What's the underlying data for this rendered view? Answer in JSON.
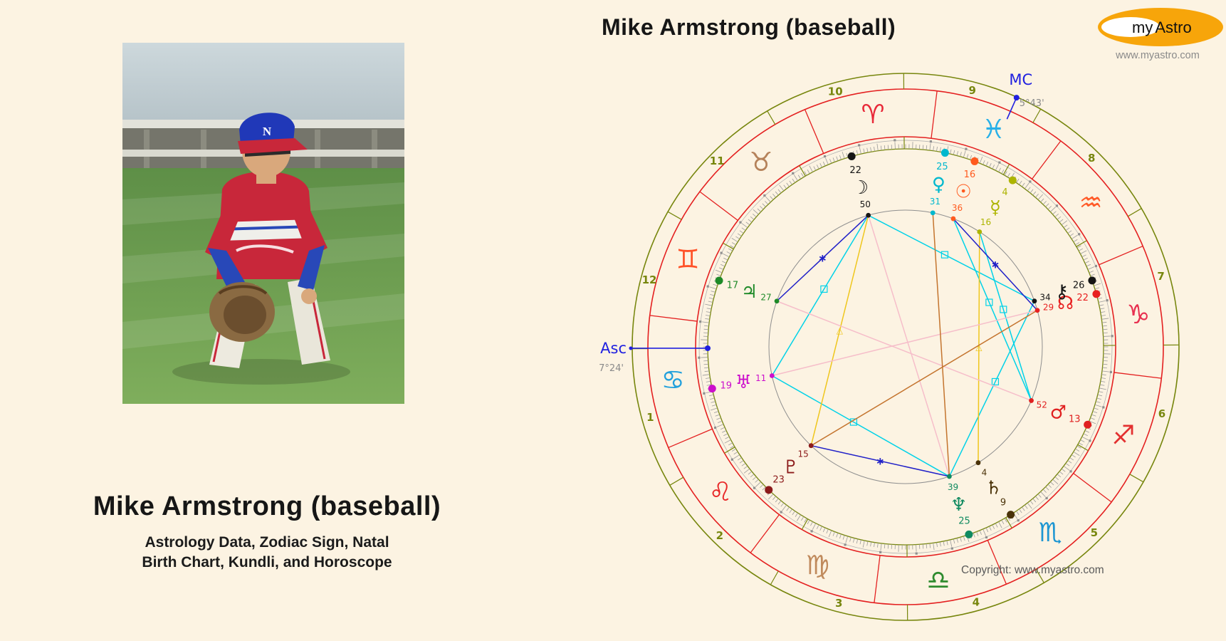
{
  "left_panel": {
    "title": "Mike Armstrong (baseball)",
    "subtitle_lines": [
      "Astrology Data, Zodiac Sign, Natal",
      "Birth Chart, Kundli, and Horoscope"
    ]
  },
  "chart_header": {
    "title": "Mike Armstrong (baseball)"
  },
  "logo": {
    "text_my": "my",
    "text_astro": "Astro",
    "website": "www.myastro.com",
    "ellipse_color": "#F7A50A"
  },
  "footer": {
    "copyright": "Copyright: www.myastro.com"
  },
  "chart": {
    "colors": {
      "ring_olive": "#77860D",
      "ring_red": "#E42020",
      "tick_gray": "#9A9A9A",
      "aspect_circle": "#8F8F8F",
      "angle_blue": "#2020E0",
      "degree_gray": "#8A8A8A",
      "square": "#00D2E8",
      "trine": "#EFC61C",
      "sextile": "#2020C8",
      "opposition": "#F6BECA",
      "quincunx": "#C4742E"
    },
    "angles": {
      "asc": {
        "label": "Asc",
        "degree": "7°24'",
        "theta": 180.4
      },
      "mc": {
        "label": "MC",
        "degree": "5°43'",
        "theta": 66
      }
    },
    "houses": [
      "1",
      "2",
      "3",
      "4",
      "5",
      "6",
      "7",
      "8",
      "9",
      "10",
      "11",
      "12"
    ],
    "signs": [
      {
        "name": "aries",
        "glyph": "♈",
        "color": "#E82838"
      },
      {
        "name": "taurus",
        "glyph": "♉",
        "color": "#B5825A"
      },
      {
        "name": "gemini",
        "glyph": "♊",
        "color": "#FF5228"
      },
      {
        "name": "cancer",
        "glyph": "♋",
        "color": "#22A0DC"
      },
      {
        "name": "leo",
        "glyph": "♌",
        "color": "#E82828"
      },
      {
        "name": "virgo",
        "glyph": "♍",
        "color": "#C08A5C"
      },
      {
        "name": "libra",
        "glyph": "♎",
        "color": "#2E8B2E"
      },
      {
        "name": "scorpio",
        "glyph": "♏",
        "color": "#1E96D2"
      },
      {
        "name": "sagittarius",
        "glyph": "♐",
        "color": "#E33030"
      },
      {
        "name": "capricorn",
        "glyph": "♑",
        "color": "#E83050"
      },
      {
        "name": "aquarius",
        "glyph": "♒",
        "color": "#FF5A28"
      },
      {
        "name": "pisces",
        "glyph": "♓",
        "color": "#28B0E8"
      }
    ],
    "planets": [
      {
        "name": "sun",
        "glyph": "☉",
        "color": "#FF5A1E",
        "lon": 346.6,
        "deg": "16",
        "min": "36"
      },
      {
        "name": "moon",
        "glyph": "☽",
        "color": "#151515",
        "lon": 22.83,
        "deg": "22",
        "min": "50"
      },
      {
        "name": "mercury",
        "glyph": "☿",
        "color": "#ADB400",
        "lon": 334.27,
        "deg": "4",
        "min": "16"
      },
      {
        "name": "venus",
        "glyph": "♀",
        "color": "#00B8CE",
        "lon": 355.52,
        "deg": "25",
        "min": "31"
      },
      {
        "name": "mars",
        "glyph": "♂",
        "color": "#E02020",
        "lon": 253.87,
        "deg": "13",
        "min": "52"
      },
      {
        "name": "jupiter",
        "glyph": "♃",
        "color": "#1E8A28",
        "lon": 77.45,
        "deg": "17",
        "min": "27"
      },
      {
        "name": "saturn",
        "glyph": "♄",
        "color": "#4A3208",
        "lon": 219.07,
        "deg": "9",
        "min": "4"
      },
      {
        "name": "uranus",
        "glyph": "♅",
        "color": "#CC10CC",
        "lon": 109.18,
        "deg": "19",
        "min": "11"
      },
      {
        "name": "neptune",
        "glyph": "♆",
        "color": "#108A60",
        "lon": 205.65,
        "deg": "25",
        "min": "39"
      },
      {
        "name": "pluto",
        "glyph": "♇",
        "color": "#8C1A1A",
        "lon": 143.25,
        "deg": "23",
        "min": "15"
      },
      {
        "name": "node",
        "glyph": "☊",
        "color": "#E82020",
        "lon": 292.48,
        "deg": "22",
        "min": "29"
      },
      {
        "name": "chiron",
        "glyph": "⚷",
        "color": "#151515",
        "lon": 296.57,
        "deg": "26",
        "min": "34"
      }
    ],
    "aspects": [
      {
        "a": "sun",
        "b": "mars",
        "type": "square"
      },
      {
        "a": "mercury",
        "b": "mars",
        "type": "square"
      },
      {
        "a": "moon",
        "b": "uranus",
        "type": "square"
      },
      {
        "a": "moon",
        "b": "chiron",
        "type": "square"
      },
      {
        "a": "uranus",
        "b": "neptune",
        "type": "square"
      },
      {
        "a": "chiron",
        "b": "neptune",
        "type": "square"
      },
      {
        "a": "moon",
        "b": "pluto",
        "type": "trine"
      },
      {
        "a": "mercury",
        "b": "saturn",
        "type": "trine"
      },
      {
        "a": "sun",
        "b": "node",
        "type": "sextile"
      },
      {
        "a": "neptune",
        "b": "pluto",
        "type": "sextile"
      },
      {
        "a": "moon",
        "b": "jupiter",
        "type": "sextile"
      },
      {
        "a": "moon",
        "b": "neptune",
        "type": "opposition"
      },
      {
        "a": "jupiter",
        "b": "mars",
        "type": "opposition"
      },
      {
        "a": "uranus",
        "b": "node",
        "type": "opposition"
      },
      {
        "a": "venus",
        "b": "neptune",
        "type": "quincunx"
      },
      {
        "a": "pluto",
        "b": "node",
        "type": "quincunx"
      }
    ]
  }
}
